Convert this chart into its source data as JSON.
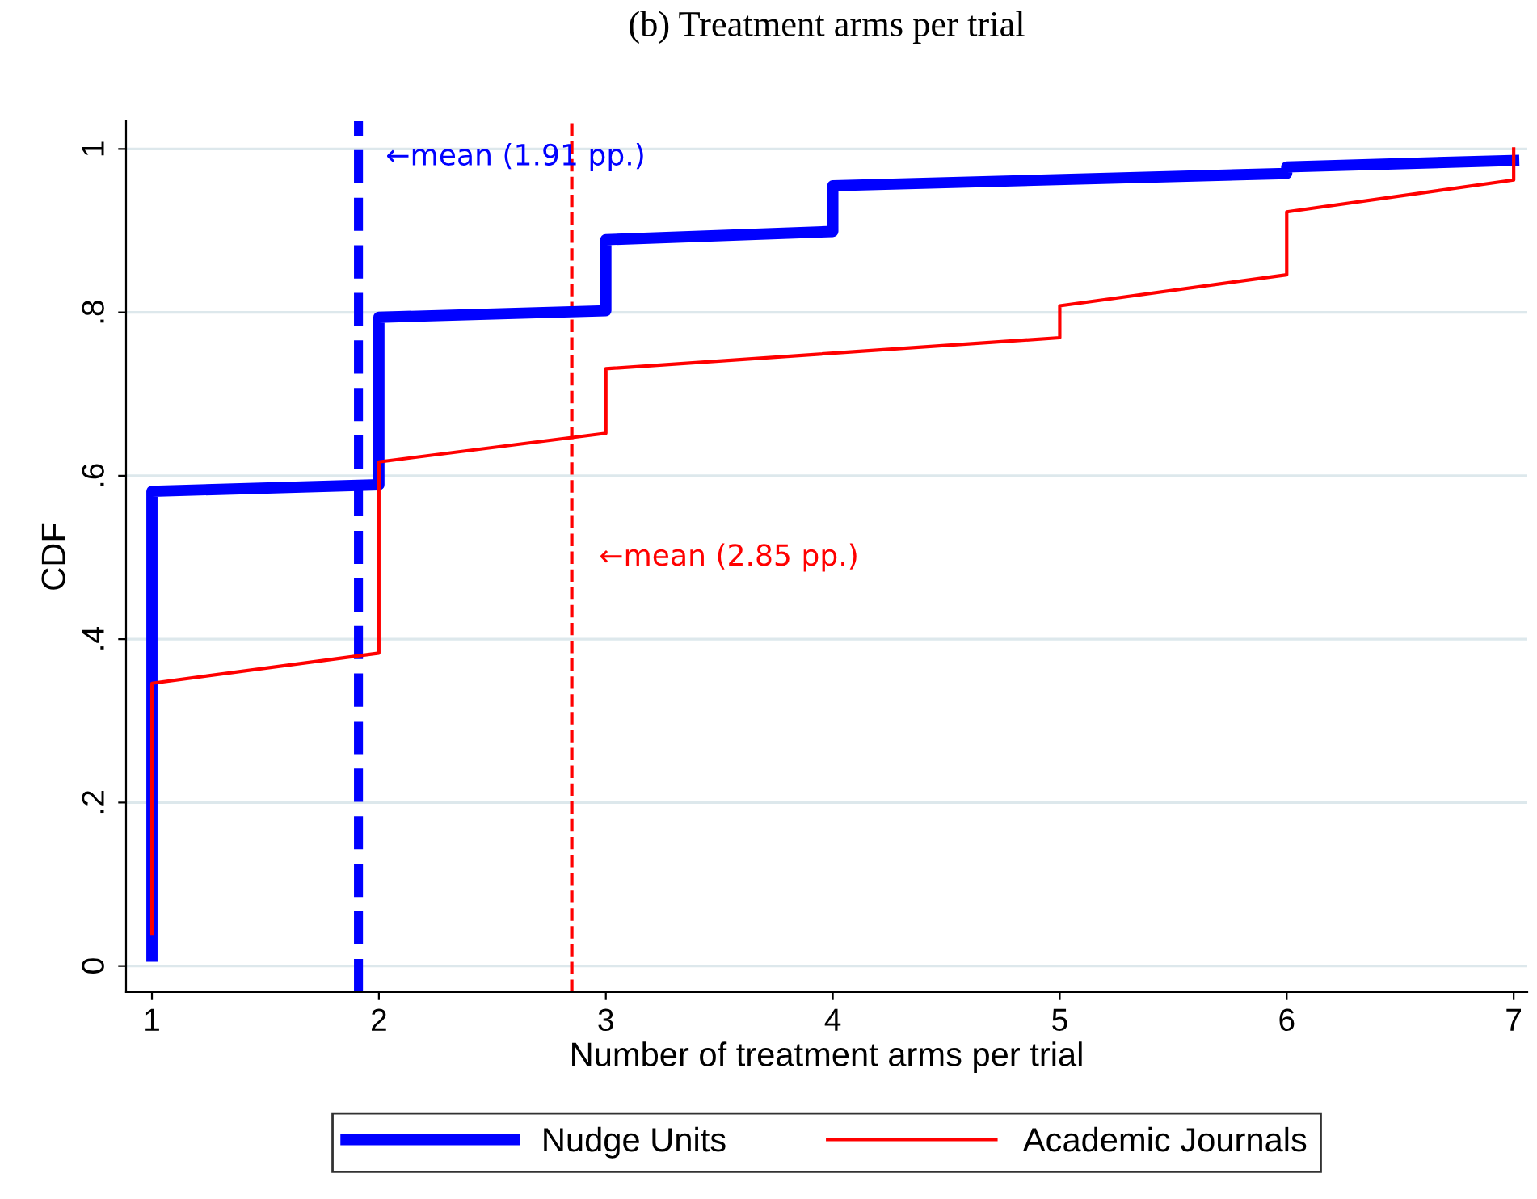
{
  "chart_data": {
    "type": "line",
    "title": "(b) Treatment arms per trial",
    "xlabel": "Number of treatment arms per trial",
    "ylabel": "CDF",
    "series": [
      {
        "name": "Nudge Units",
        "color": "#0000ff",
        "x": [
          1,
          1,
          2,
          2,
          3,
          3,
          4,
          4,
          6,
          6,
          7
        ],
        "values": [
          0.012,
          0.581,
          0.589,
          0.794,
          0.802,
          0.889,
          0.899,
          0.955,
          0.97,
          0.978,
          0.986
        ]
      },
      {
        "name": "Academic Journals",
        "color": "#ff0000",
        "x": [
          1,
          1,
          2,
          2,
          3,
          3,
          5,
          5,
          6,
          6,
          7,
          7
        ],
        "values": [
          0.04,
          0.346,
          0.383,
          0.617,
          0.652,
          0.731,
          0.769,
          0.808,
          0.846,
          0.923,
          0.962,
          1.0
        ]
      }
    ],
    "ref_lines": [
      {
        "axis": "x",
        "value": 1.91,
        "label": "←mean (1.91 pp.)",
        "color": "#0000ff",
        "line_style": "dashed"
      },
      {
        "axis": "x",
        "value": 2.85,
        "label": "←mean (2.85 pp.)",
        "color": "#ff0000",
        "line_style": "dashed"
      }
    ],
    "xlim": [
      0.886,
      7.06
    ],
    "xticks": [
      1,
      2,
      3,
      4,
      5,
      6,
      7
    ],
    "ylim": [
      -0.032,
      1.034
    ],
    "yticks": [
      0,
      {
        "value": 0.2,
        "label": ".2"
      },
      {
        "value": 0.4,
        "label": ".4"
      },
      {
        "value": 0.6,
        "label": ".6"
      },
      {
        "value": 0.8,
        "label": ".8"
      },
      1
    ],
    "grid": "y",
    "legend": "bottom",
    "marker": "none",
    "line_style": "solid"
  }
}
